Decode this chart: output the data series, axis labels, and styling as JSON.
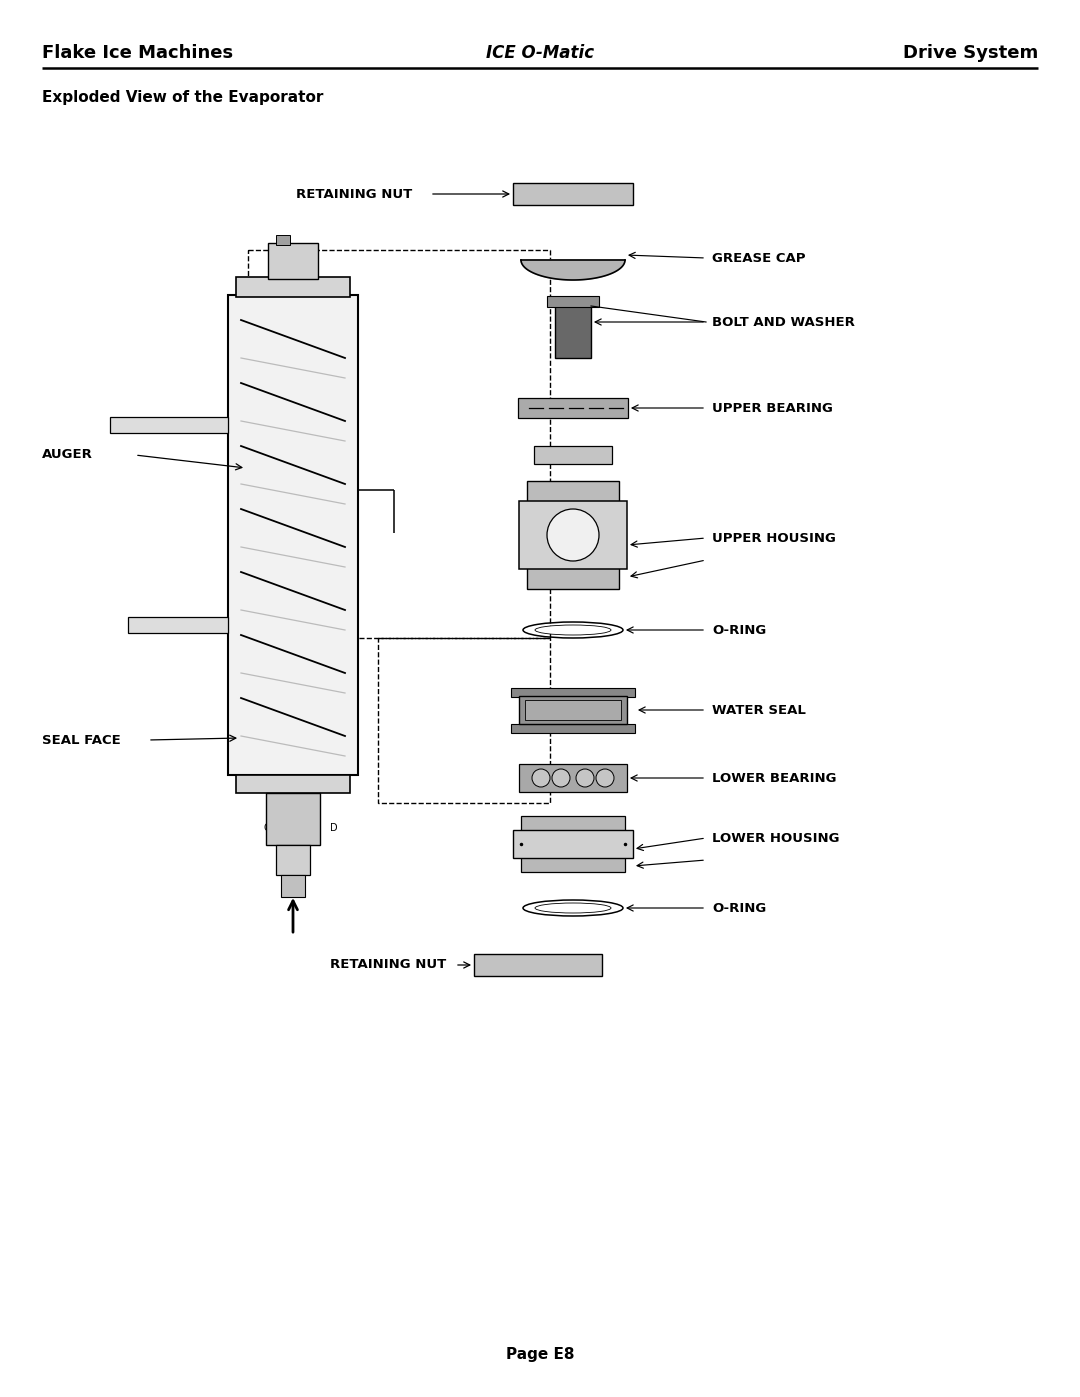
{
  "page_title_left": "Flake Ice Machines",
  "page_title_center": "ICE O-Matic",
  "page_title_right": "Drive System",
  "section_title": "Exploded View of the Evaporator",
  "page_footer": "Page E8",
  "bg_color": "#ffffff",
  "labels": {
    "retaining_nut_top": "RETAINING NUT",
    "grease_cap": "GREASE CAP",
    "bolt_and_washer": "BOLT AND WASHER",
    "upper_bearing": "UPPER BEARING",
    "upper_housing": "UPPER HOUSING",
    "o_ring_upper": "O-RING",
    "water_seal": "WATER SEAL",
    "lower_bearing": "LOWER BEARING",
    "lower_housing": "LOWER HOUSING",
    "o_ring_lower": "O-RING",
    "retaining_nut_bottom": "RETAINING NUT",
    "auger": "AUGER",
    "seal_face": "SEAL FACE"
  }
}
